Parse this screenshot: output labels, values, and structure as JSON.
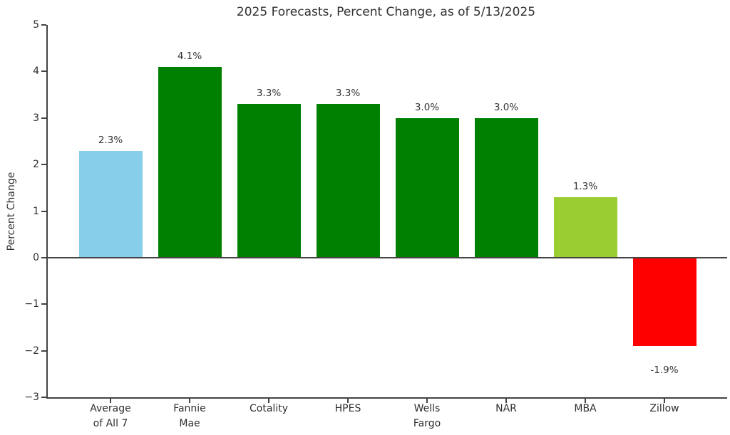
{
  "chart_data": {
    "type": "bar",
    "title": "2025 Forecasts, Percent Change, as of 5/13/2025",
    "ylabel": "Percent Change",
    "categories": [
      "Average\nof All 7",
      "Fannie\nMae",
      "Cotality",
      "HPES",
      "Wells\nFargo",
      "NAR",
      "MBA",
      "Zillow"
    ],
    "values": [
      2.3,
      4.1,
      3.3,
      3.3,
      3.0,
      3.0,
      1.3,
      -1.9
    ],
    "value_labels": [
      "2.3%",
      "4.1%",
      "3.3%",
      "3.3%",
      "3.0%",
      "3.0%",
      "1.3%",
      "-1.9%"
    ],
    "bar_colors": [
      "#87CEEB",
      "#008000",
      "#008000",
      "#008000",
      "#008000",
      "#008000",
      "#9ACD32",
      "#FF0000"
    ],
    "ylim": [
      -3,
      5
    ],
    "yticks": [
      5,
      4,
      3,
      2,
      1,
      0,
      -1,
      -2,
      -3
    ],
    "ytick_labels": [
      "5",
      "4",
      "3",
      "2",
      "1",
      "0",
      "−1",
      "−2",
      "−3"
    ],
    "zero_baseline": true,
    "grid": false,
    "legend": "none",
    "line_color": "#444444",
    "text_color": "#2f2f2f"
  }
}
